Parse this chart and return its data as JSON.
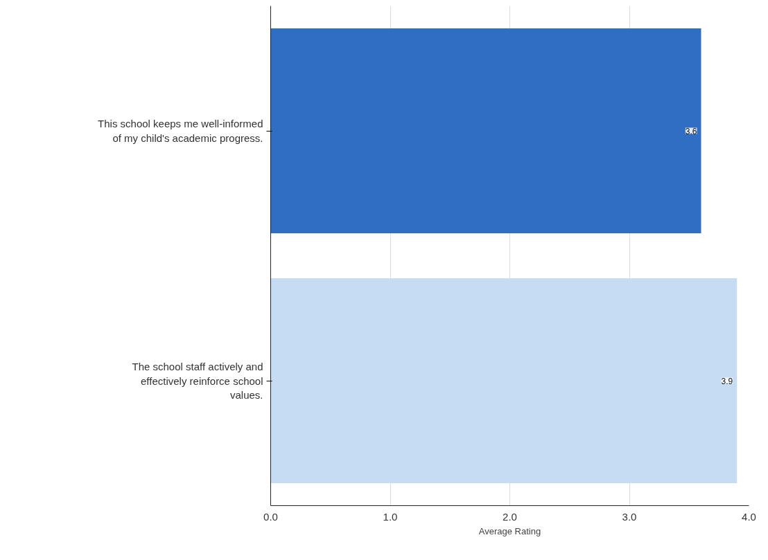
{
  "chart_data": {
    "type": "bar",
    "orientation": "horizontal",
    "xlabel": "Average Rating",
    "categories": [
      "This school keeps me well-informed of my child's academic progress.",
      "The school staff actively and effectively reinforce school values."
    ],
    "values": [
      3.6,
      3.9
    ],
    "colors": [
      "#2f6ec2",
      "#c6dcf3"
    ],
    "xlim": [
      0,
      4
    ],
    "xticks": [
      {
        "value": 0,
        "label": "0.0"
      },
      {
        "value": 1,
        "label": "1.0"
      },
      {
        "value": 2,
        "label": "2.0"
      },
      {
        "value": 3,
        "label": "3.0"
      },
      {
        "value": 4,
        "label": "4.0"
      }
    ],
    "grid": "x",
    "data_labels": true
  }
}
